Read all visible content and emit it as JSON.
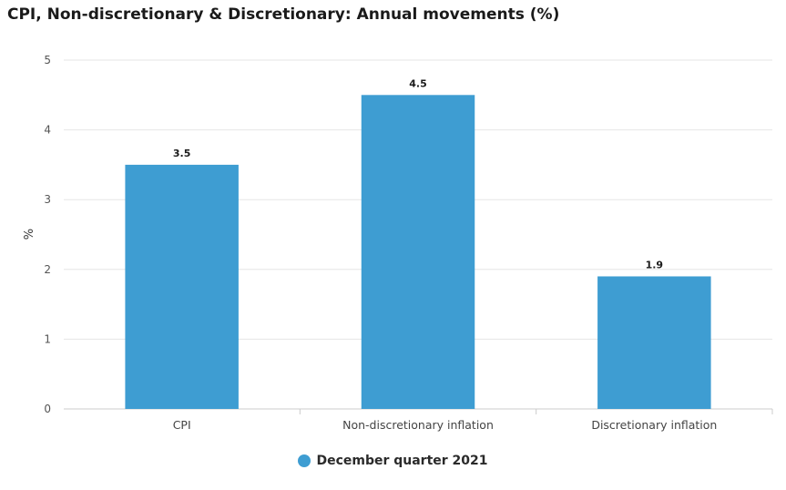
{
  "chart_data": {
    "type": "bar",
    "title": "CPI, Non-discretionary & Discretionary: Annual movements (%)",
    "xlabel": "",
    "ylabel": "%",
    "categories": [
      "CPI",
      "Non-discretionary inflation",
      "Discretionary inflation"
    ],
    "series": [
      {
        "name": "December quarter 2021",
        "values": [
          3.5,
          4.5,
          1.9
        ],
        "color": "#3e9dd2"
      }
    ],
    "ylim": [
      0,
      5
    ],
    "yticks": [
      0,
      1,
      2,
      3,
      4,
      5
    ],
    "grid": true,
    "legend": "bottom-center",
    "data_labels": [
      "3.5",
      "4.5",
      "1.9"
    ]
  }
}
